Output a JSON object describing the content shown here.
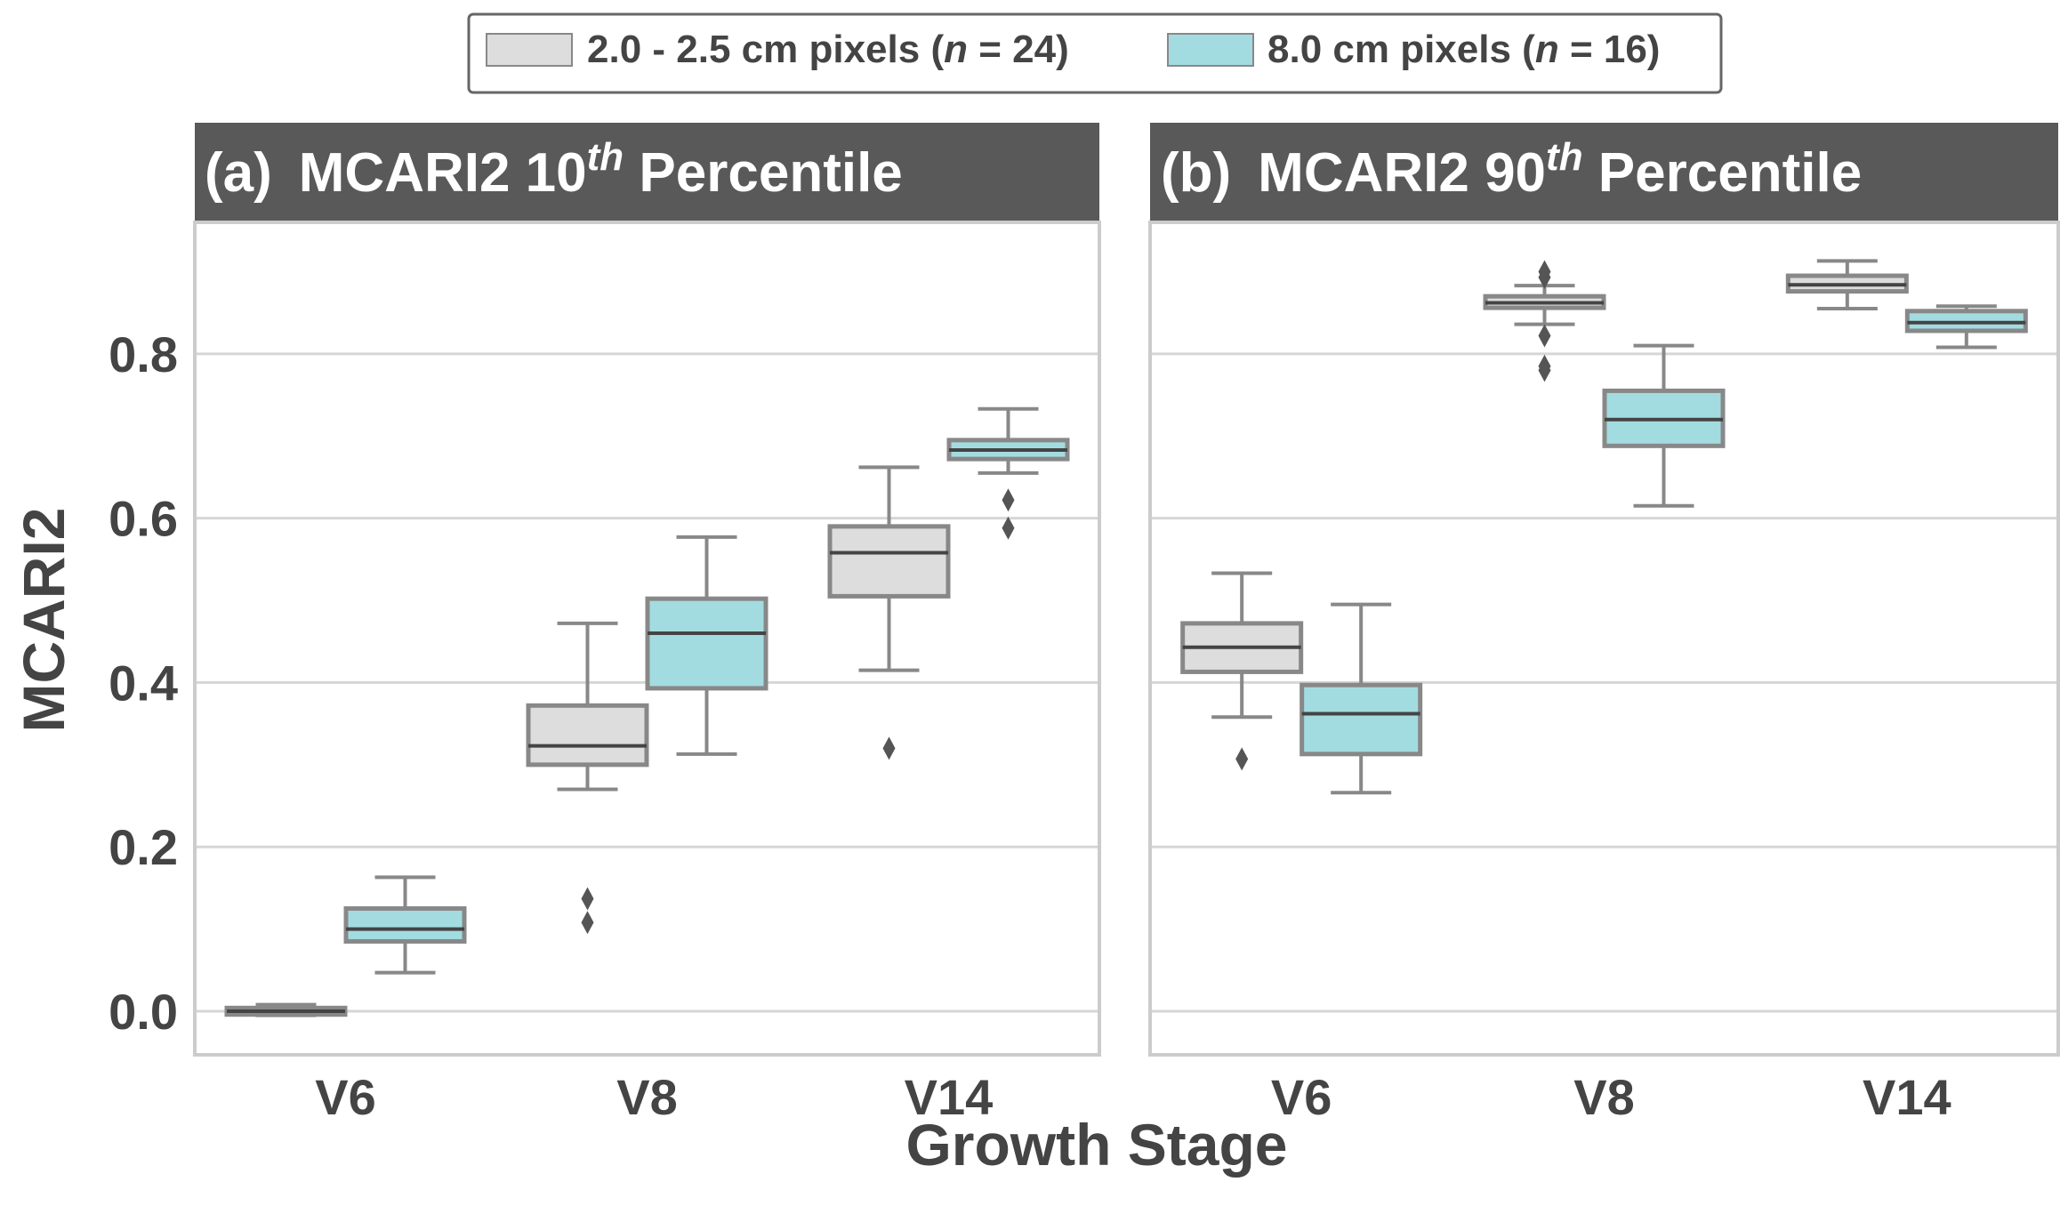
{
  "chart_data": {
    "type": "box",
    "xlabel": "Growth Stage",
    "ylabel": "MCARI2",
    "ylim": [
      -0.053,
      0.96
    ],
    "yticks": [
      "0.0",
      "0.2",
      "0.4",
      "0.6",
      "0.8"
    ],
    "ytick_values": [
      0.0,
      0.2,
      0.4,
      0.6,
      0.8
    ],
    "grid": true,
    "legend": {
      "placement": "top-center",
      "entries": [
        {
          "prefix": "2.0 - 2.5 cm pixels (",
          "n": "n",
          "suffix": " = 24)",
          "color": "#dddddd"
        },
        {
          "prefix": "8.0 cm pixels (",
          "n": "n",
          "suffix": " = 16)",
          "color": "#a3dce0"
        }
      ]
    },
    "categories": [
      "V6",
      "V8",
      "V14"
    ],
    "panels": [
      {
        "label": "(a)",
        "title_pre": "MCARI2 10",
        "title_sup": "th",
        "title_post": " Percentile",
        "series": [
          {
            "name": "2.0 - 2.5 cm pixels",
            "boxes": [
              {
                "lo": -0.005,
                "q1": -0.004,
                "med": 0.0,
                "q3": 0.004,
                "hi": 0.008,
                "out": []
              },
              {
                "lo": 0.27,
                "q1": 0.3,
                "med": 0.323,
                "q3": 0.372,
                "hi": 0.472,
                "out": [
                  0.137,
                  0.108
                ]
              },
              {
                "lo": 0.415,
                "q1": 0.505,
                "med": 0.558,
                "q3": 0.59,
                "hi": 0.662,
                "out": [
                  0.32
                ]
              }
            ]
          },
          {
            "name": "8.0 cm pixels",
            "boxes": [
              {
                "lo": 0.047,
                "q1": 0.085,
                "med": 0.1,
                "q3": 0.125,
                "hi": 0.163,
                "out": []
              },
              {
                "lo": 0.313,
                "q1": 0.393,
                "med": 0.46,
                "q3": 0.502,
                "hi": 0.577,
                "out": []
              },
              {
                "lo": 0.655,
                "q1": 0.672,
                "med": 0.683,
                "q3": 0.695,
                "hi": 0.733,
                "out": [
                  0.622,
                  0.588
                ]
              }
            ]
          }
        ]
      },
      {
        "label": "(b)",
        "title_pre": "MCARI2 90",
        "title_sup": "th",
        "title_post": " Percentile",
        "series": [
          {
            "name": "2.0 - 2.5 cm pixels",
            "boxes": [
              {
                "lo": 0.358,
                "q1": 0.413,
                "med": 0.443,
                "q3": 0.472,
                "hi": 0.533,
                "out": [
                  0.307
                ]
              },
              {
                "lo": 0.836,
                "q1": 0.856,
                "med": 0.862,
                "q3": 0.87,
                "hi": 0.883,
                "out": [
                  0.9,
                  0.893,
                  0.822,
                  0.785,
                  0.78
                ]
              },
              {
                "lo": 0.855,
                "q1": 0.876,
                "med": 0.884,
                "q3": 0.895,
                "hi": 0.913,
                "out": []
              }
            ]
          },
          {
            "name": "8.0 cm pixels",
            "boxes": [
              {
                "lo": 0.266,
                "q1": 0.313,
                "med": 0.362,
                "q3": 0.397,
                "hi": 0.495,
                "out": []
              },
              {
                "lo": 0.615,
                "q1": 0.688,
                "med": 0.72,
                "q3": 0.755,
                "hi": 0.81,
                "out": []
              },
              {
                "lo": 0.808,
                "q1": 0.828,
                "med": 0.838,
                "q3": 0.852,
                "hi": 0.858,
                "out": []
              }
            ]
          }
        ]
      }
    ]
  }
}
